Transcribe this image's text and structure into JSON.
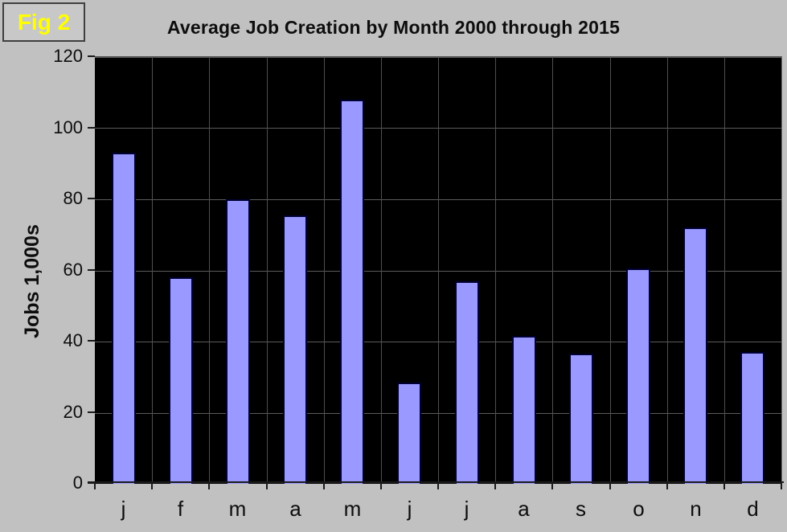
{
  "figure_label": "Fig 2",
  "chart_data": {
    "type": "bar",
    "title": "Average Job Creation by Month 2000 through 2015",
    "xlabel": "",
    "ylabel": "Jobs 1,000s",
    "categories": [
      "j",
      "f",
      "m",
      "a",
      "m",
      "j",
      "j",
      "a",
      "s",
      "o",
      "n",
      "d"
    ],
    "values": [
      93,
      58,
      80,
      75.5,
      108,
      28.5,
      57,
      41.5,
      36.5,
      60.5,
      72,
      37
    ],
    "ylim": [
      0,
      120
    ],
    "yticks": [
      0,
      20,
      40,
      60,
      80,
      100,
      120
    ],
    "grid": true,
    "legend": "none",
    "colors": {
      "bar_fill": "#9999ff",
      "bar_border": "#000033",
      "plot_bg": "#000000",
      "page_bg": "#c1c1c1",
      "gridline": "#5c5c5c",
      "fig_label_text": "#ffff00",
      "text": "#0d0d0d"
    }
  }
}
